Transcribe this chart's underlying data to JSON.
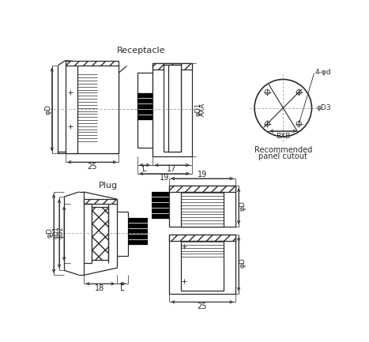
{
  "bg_color": "#ffffff",
  "line_color": "#2a2a2a",
  "title_receptacle": "Receptacle",
  "title_plug": "Plug",
  "title_panel_line1": "Recommended",
  "title_panel_line2": "panel cutout",
  "dim_25_rec": "25",
  "dim_L_rec": "L",
  "dim_17": "17",
  "dim_19": "19",
  "dim_phiD_rec": "φD",
  "dim_phiD1_rec": "φD1",
  "dim_AxA": "AXA",
  "dim_BxB": "BXB",
  "dim_phiD3": "φD3",
  "dim_4phid": "4-φd",
  "dim_25_plug": "25",
  "dim_18": "18",
  "dim_L_plug": "L",
  "dim_phiD_plug": "φD",
  "dim_phiD1_plug": "φD1",
  "dim_phiD2_plug": "φD2"
}
